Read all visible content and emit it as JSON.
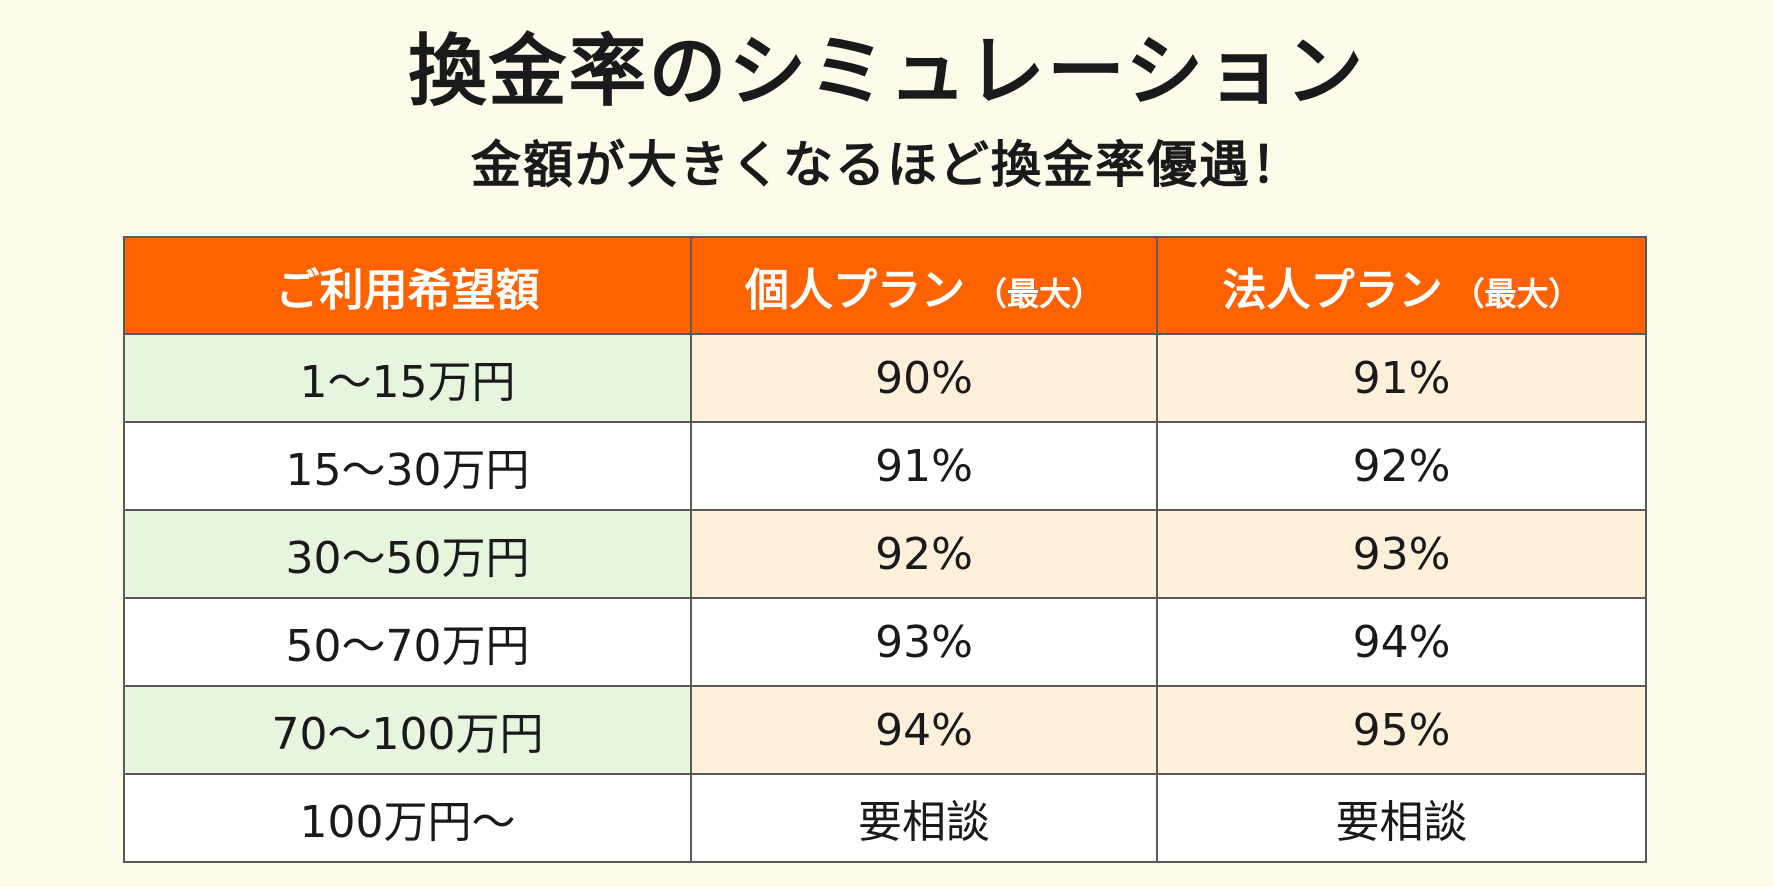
{
  "title": "換金率のシミュレーション",
  "subtitle": "金額が大きくなるほど換金率優遇！",
  "table": {
    "headers": {
      "amount": "ご利用希望額",
      "personal": "個人プラン",
      "corporate": "法人プラン",
      "note": "（最大）"
    },
    "rows": [
      {
        "amount": "1〜15万円",
        "personal": "90%",
        "corporate": "91%"
      },
      {
        "amount": "15〜30万円",
        "personal": "91%",
        "corporate": "92%"
      },
      {
        "amount": "30〜50万円",
        "personal": "92%",
        "corporate": "93%"
      },
      {
        "amount": "50〜70万円",
        "personal": "93%",
        "corporate": "94%"
      },
      {
        "amount": "70〜100万円",
        "personal": "94%",
        "corporate": "95%"
      },
      {
        "amount": "100万円〜",
        "personal": "要相談",
        "corporate": "要相談"
      }
    ]
  },
  "colors": {
    "header": "#ff6200",
    "amount_shade": "#e7f5de",
    "rate_shade": "#fef0db",
    "background": "#fdfbea"
  }
}
